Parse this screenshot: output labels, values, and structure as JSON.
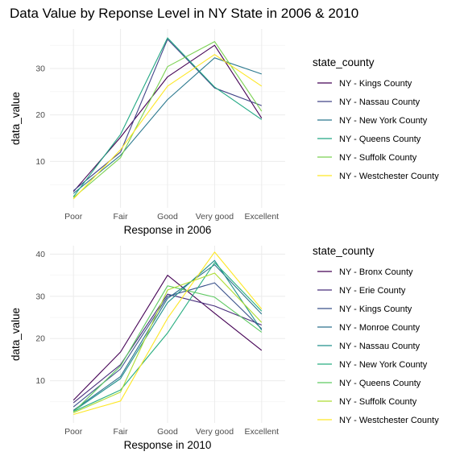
{
  "title": "Data Value by Reponse Level in NY State in 2006 & 2010",
  "chart_data": [
    {
      "type": "line",
      "categories": [
        "Poor",
        "Fair",
        "Good",
        "Very good",
        "Excellent"
      ],
      "xlabel": "Response in 2006",
      "ylabel": "data_value",
      "ylim": [
        0,
        38.5
      ],
      "yticks": [
        10,
        20,
        30
      ],
      "grid": true,
      "legend": {
        "title": "state_county",
        "placement": "right"
      },
      "series": [
        {
          "name": "NY - Kings County",
          "color": "#440154",
          "values": [
            3.5,
            15.2,
            28.2,
            35.0,
            19.3
          ]
        },
        {
          "name": "NY - Nassau County",
          "color": "#414487",
          "values": [
            3.7,
            12.0,
            36.3,
            25.8,
            22.0
          ]
        },
        {
          "name": "NY - New York County",
          "color": "#2a788e",
          "values": [
            3.1,
            11.3,
            23.3,
            32.3,
            28.8
          ]
        },
        {
          "name": "NY - Queens County",
          "color": "#22a884",
          "values": [
            2.4,
            15.8,
            36.6,
            26.0,
            19.0
          ]
        },
        {
          "name": "NY - Suffolk County",
          "color": "#7ad151",
          "values": [
            2.2,
            10.8,
            30.4,
            35.8,
            20.8
          ]
        },
        {
          "name": "NY - Westchester County",
          "color": "#fde725",
          "values": [
            1.9,
            12.5,
            26.2,
            33.0,
            26.2
          ]
        }
      ]
    },
    {
      "type": "line",
      "categories": [
        "Poor",
        "Fair",
        "Good",
        "Very good",
        "Excellent"
      ],
      "xlabel": "Response in 2010",
      "ylabel": "data_value",
      "ylim": [
        0,
        42
      ],
      "yticks": [
        10,
        20,
        30,
        40
      ],
      "grid": true,
      "legend": {
        "title": "state_county",
        "placement": "right"
      },
      "series": [
        {
          "name": "NY - Bronx County",
          "color": "#440154",
          "values": [
            5.4,
            16.8,
            35.0,
            26.0,
            17.2
          ]
        },
        {
          "name": "NY - Erie County",
          "color": "#472d7b",
          "values": [
            4.8,
            13.8,
            30.5,
            27.7,
            23.2
          ]
        },
        {
          "name": "NY - Kings County",
          "color": "#3b528b",
          "values": [
            3.8,
            12.8,
            30.0,
            33.2,
            22.3
          ]
        },
        {
          "name": "NY - Monroe County",
          "color": "#2c728e",
          "values": [
            3.0,
            11.0,
            29.5,
            37.5,
            25.8
          ]
        },
        {
          "name": "NY - Nassau County",
          "color": "#21918c",
          "values": [
            2.8,
            10.5,
            28.5,
            38.5,
            22.0
          ]
        },
        {
          "name": "NY - New York County",
          "color": "#28ae80",
          "values": [
            2.7,
            7.8,
            21.3,
            38.0,
            26.5
          ]
        },
        {
          "name": "NY - Queens County",
          "color": "#5ec962",
          "values": [
            2.6,
            13.5,
            32.5,
            29.8,
            21.5
          ]
        },
        {
          "name": "NY - Suffolk County",
          "color": "#addc30",
          "values": [
            2.4,
            7.3,
            31.5,
            35.5,
            23.8
          ]
        },
        {
          "name": "NY - Westchester County",
          "color": "#fde725",
          "values": [
            2.0,
            5.2,
            24.8,
            40.5,
            27.0
          ]
        }
      ]
    }
  ]
}
